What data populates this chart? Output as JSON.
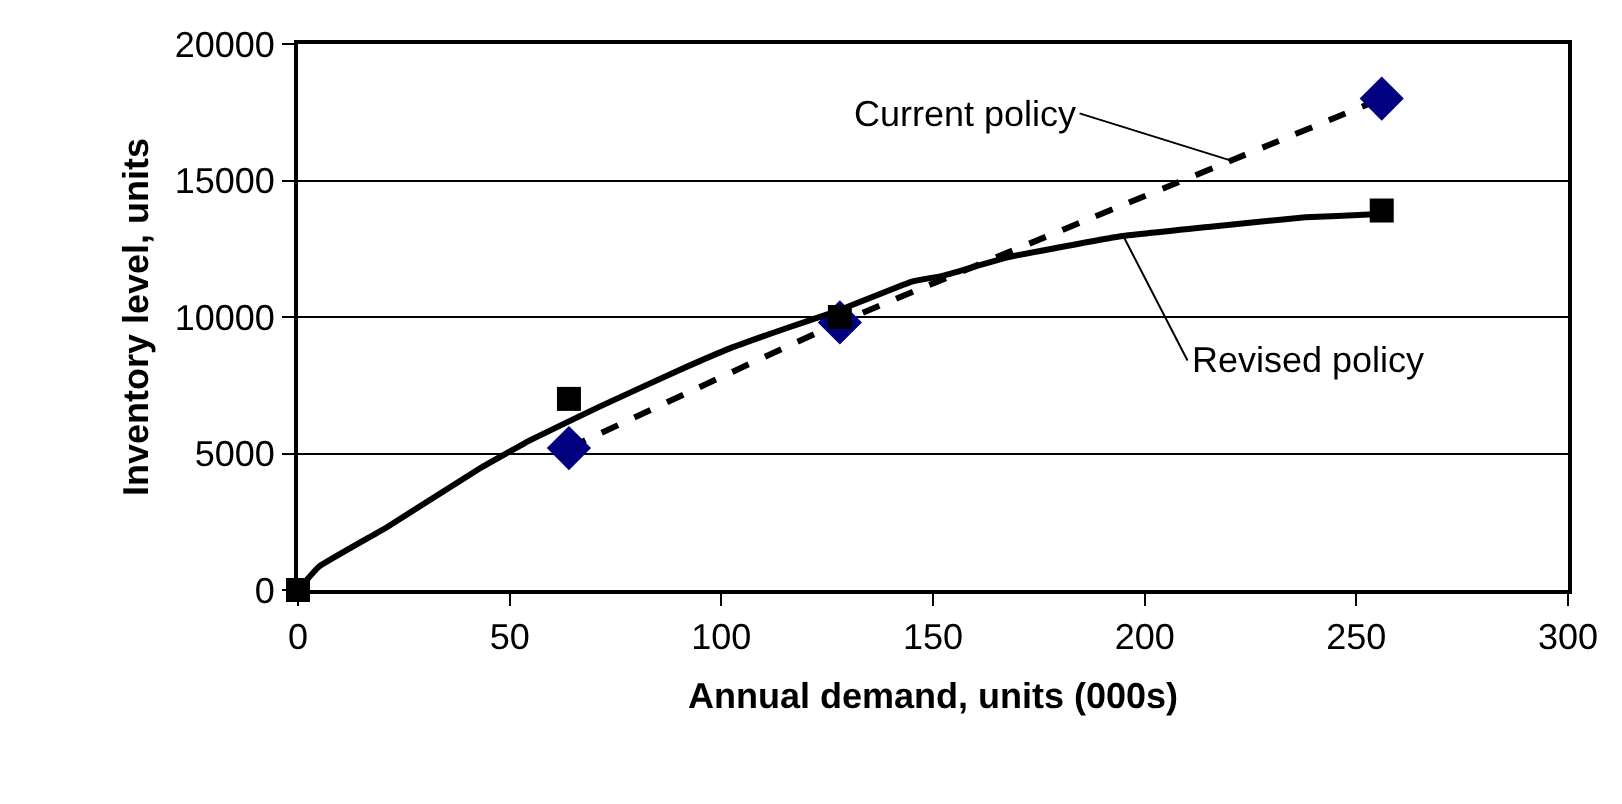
{
  "chart_data": {
    "type": "line",
    "xlabel": "Annual demand, units (000s)",
    "ylabel": "Inventory level, units",
    "xlim": [
      0,
      300
    ],
    "xticks": [
      0,
      50,
      100,
      150,
      200,
      250,
      300
    ],
    "ylim": [
      0,
      20000
    ],
    "yticks": [
      0,
      5000,
      10000,
      15000,
      20000
    ],
    "grid": "y",
    "series": [
      {
        "color": "#000000",
        "line_style": "dashed",
        "marker": "none",
        "x": [
          64,
          128,
          256
        ],
        "values": [
          5200,
          9800,
          18000
        ]
      },
      {
        "type": "scatter",
        "color": "#000080",
        "marker": "diamond",
        "x": [
          64,
          128,
          256
        ],
        "values": [
          5200,
          9800,
          18000
        ]
      },
      {
        "color": "#000000",
        "line_style": "solid",
        "marker": "none",
        "x": [
          0,
          5,
          21,
          43,
          55,
          71,
          90,
          102,
          115,
          127,
          145,
          152,
          168,
          194,
          215,
          238,
          253,
          256
        ],
        "values": [
          0,
          860,
          2300,
          4460,
          5500,
          6700,
          8050,
          8850,
          9570,
          10200,
          11300,
          11500,
          12200,
          12950,
          13300,
          13650,
          13750,
          13750
        ]
      },
      {
        "type": "scatter",
        "color": "#000000",
        "marker": "square",
        "x": [
          0,
          64,
          128,
          256
        ],
        "values": [
          0,
          7000,
          10000,
          13900
        ]
      }
    ],
    "annotations": [
      {
        "text": "Current policy",
        "x": 221,
        "y": 15700
      },
      {
        "text": "Revised policy",
        "x": 195,
        "y": 12950
      }
    ]
  }
}
